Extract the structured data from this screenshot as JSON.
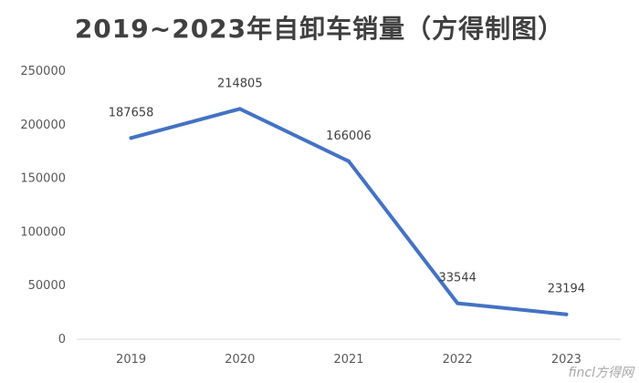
{
  "chart_data": {
    "type": "line",
    "title": "2019~2023年自卸车销量（方得制图）",
    "xlabel": "",
    "ylabel": "",
    "categories": [
      "2019",
      "2020",
      "2021",
      "2022",
      "2023"
    ],
    "series": [
      {
        "values": [
          187658,
          214805,
          166006,
          33544,
          23194
        ]
      }
    ],
    "ylim": [
      0,
      250000
    ],
    "yticks": [
      0,
      50000,
      100000,
      150000,
      200000,
      250000
    ],
    "ytick_labels": [
      "0",
      "50000",
      "100000",
      "150000",
      "200000",
      "250000"
    ],
    "data_labels": [
      "187658",
      "214805",
      "166006",
      "33544",
      "23194"
    ],
    "grid": false,
    "legend": "none",
    "line_color": "#4472c4"
  },
  "watermark": "fincl方得网"
}
